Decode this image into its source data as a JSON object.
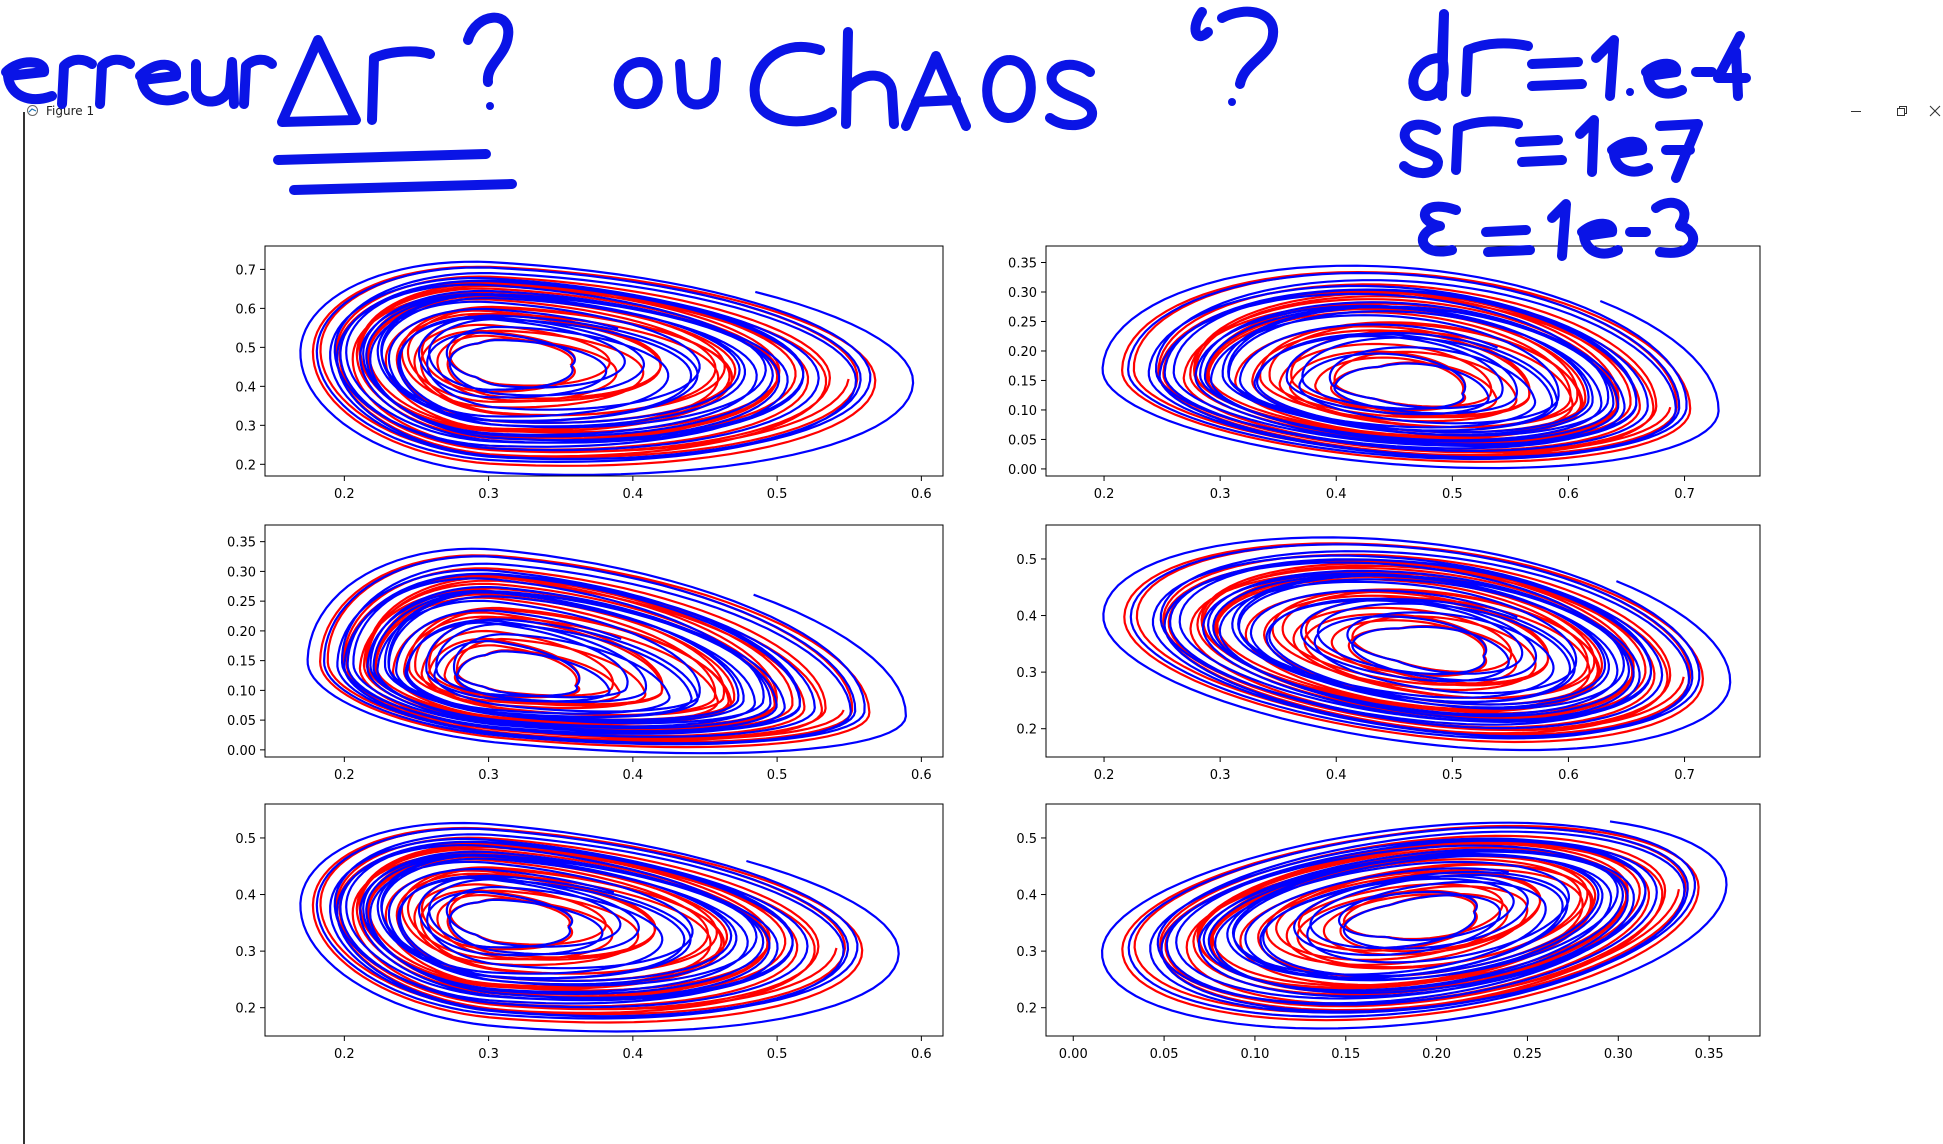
{
  "window": {
    "title": "Figure 1",
    "controls": {
      "minimize": "minimize-icon",
      "restore": "restore-icon",
      "close": "close-icon"
    }
  },
  "colors": {
    "series_a": "#ff0000",
    "series_b": "#0000ff",
    "ink": "#0a14e6"
  },
  "annotation": {
    "note": "erreur Δt ? ou Chaos ?",
    "params": [
      "dt = 1.e-4",
      "st = 1e7",
      "ε = 1e-3"
    ]
  },
  "chart_data": [
    {
      "type": "line",
      "xlim": [
        0.145,
        0.615
      ],
      "ylim": [
        0.17,
        0.76
      ],
      "xticks": [
        "0.2",
        "0.3",
        "0.4",
        "0.5",
        "0.6"
      ],
      "yticks": [
        "0.2",
        "0.3",
        "0.4",
        "0.5",
        "0.6",
        "0.7"
      ]
    },
    {
      "type": "line",
      "xlim": [
        0.15,
        0.765
      ],
      "ylim": [
        -0.012,
        0.378
      ],
      "xticks": [
        "0.2",
        "0.3",
        "0.4",
        "0.5",
        "0.6",
        "0.7"
      ],
      "yticks": [
        "0.00",
        "0.05",
        "0.10",
        "0.15",
        "0.20",
        "0.25",
        "0.30",
        "0.35"
      ]
    },
    {
      "type": "line",
      "xlim": [
        0.145,
        0.615
      ],
      "ylim": [
        -0.012,
        0.378
      ],
      "xticks": [
        "0.2",
        "0.3",
        "0.4",
        "0.5",
        "0.6"
      ],
      "yticks": [
        "0.00",
        "0.05",
        "0.10",
        "0.15",
        "0.20",
        "0.25",
        "0.30",
        "0.35"
      ]
    },
    {
      "type": "line",
      "xlim": [
        0.15,
        0.765
      ],
      "ylim": [
        0.15,
        0.56
      ],
      "xticks": [
        "0.2",
        "0.3",
        "0.4",
        "0.5",
        "0.6",
        "0.7"
      ],
      "yticks": [
        "0.2",
        "0.3",
        "0.4",
        "0.5"
      ]
    },
    {
      "type": "line",
      "xlim": [
        0.145,
        0.615
      ],
      "ylim": [
        0.15,
        0.56
      ],
      "xticks": [
        "0.2",
        "0.3",
        "0.4",
        "0.5",
        "0.6"
      ],
      "yticks": [
        "0.2",
        "0.3",
        "0.4",
        "0.5"
      ]
    },
    {
      "type": "line",
      "xlim": [
        -0.015,
        0.378
      ],
      "ylim": [
        0.15,
        0.56
      ],
      "xticks": [
        "0.00",
        "0.05",
        "0.10",
        "0.15",
        "0.20",
        "0.25",
        "0.30",
        "0.35"
      ],
      "yticks": [
        "0.2",
        "0.3",
        "0.4",
        "0.5"
      ]
    }
  ]
}
